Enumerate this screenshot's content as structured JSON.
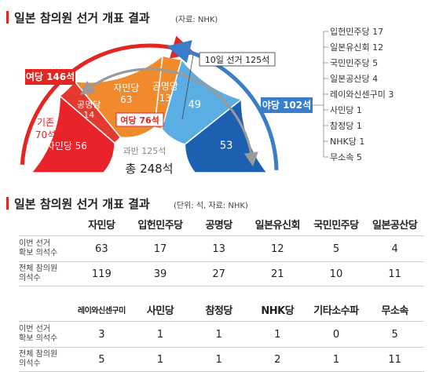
{
  "title": {
    "main": "일본 참의원 선거 개표 결과",
    "source": "(자료: NHK)"
  },
  "colors": {
    "ruling": "#d71920",
    "ruling_light": "#f08a2c",
    "opp_light": "#5aaee3",
    "opp_dark": "#1d5fb0",
    "ruling_arrow": "#e52521",
    "opp_arrow": "#3a7dc8",
    "grey_arrow": "#9a9a9a"
  },
  "chart_data": [
    {
      "type": "pie",
      "subtype": "semicircle-parliament",
      "total_label": "총 248석",
      "majority_label": "과반 125석",
      "rings": {
        "outer": {
          "label": "기존 70석",
          "slices": [
            {
              "name": "공명당",
              "value": 14
            },
            {
              "name": "자민당",
              "value": 56
            }
          ]
        },
        "inner": [
          {
            "name": "자민당",
            "value": 63
          },
          {
            "name": "공명당",
            "value": 13
          },
          {
            "name": "야당",
            "value": 49
          },
          {
            "name": "야당",
            "value": 53
          }
        ]
      },
      "ruling_total": "여당 76석",
      "annotations": {
        "ruling_arrow": "여당 146석",
        "opposition_arrow": "야당 102석",
        "election_arrow": "10일 선거 125석"
      },
      "opposition_breakdown": [
        "입헌민주당 17",
        "일본유신회 12",
        "국민민주당 5",
        "일본공산당 4",
        "레이와신센구미 3",
        "사민당 1",
        "참정당 1",
        "NHK당 1",
        "무소속 5"
      ]
    },
    {
      "type": "table",
      "title": "일본 참의원 선거 개표 결과",
      "subtitle": "(단위: 석, 자료: NHK)",
      "row_labels": [
        "이번 선거 확보 의석수",
        "전체 참의원 의석수"
      ],
      "blocks": [
        {
          "parties": [
            "자민당",
            "입헌민주당",
            "공명당",
            "일본유신회",
            "국민민주당",
            "일본공산당"
          ],
          "this_election": [
            63,
            17,
            13,
            12,
            5,
            4
          ],
          "total": [
            119,
            39,
            27,
            21,
            10,
            11
          ]
        },
        {
          "parties": [
            "레이와신센구미",
            "사민당",
            "참정당",
            "NHK당",
            "기타소수파",
            "무소속"
          ],
          "this_election": [
            3,
            1,
            1,
            1,
            0,
            5
          ],
          "total": [
            5,
            1,
            1,
            2,
            1,
            11
          ]
        }
      ]
    }
  ],
  "row_label_lines": {
    "a": [
      "이번 선거",
      "확보 의석수"
    ],
    "b": [
      "전체 참의원",
      "의석수"
    ]
  }
}
